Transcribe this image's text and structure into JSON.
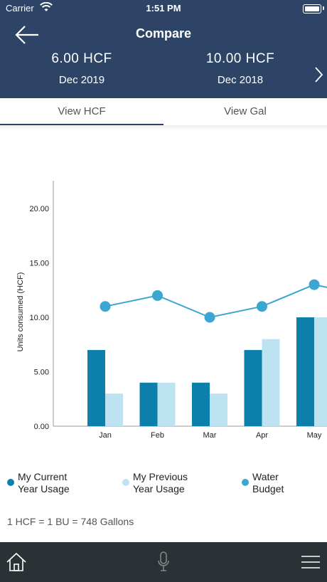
{
  "status_bar": {
    "carrier": "Carrier",
    "time": "1:51 PM"
  },
  "header": {
    "title": "Compare",
    "left": {
      "value": "6.00 HCF",
      "date": "Dec 2019"
    },
    "right": {
      "value": "10.00 HCF",
      "date": "Dec 2018"
    }
  },
  "tabs": [
    {
      "label": "View HCF",
      "active": true
    },
    {
      "label": "View Gal",
      "active": false
    }
  ],
  "chart_data": {
    "type": "bar",
    "ylabel": "Units consumed (HCF)",
    "ylim": [
      0,
      22.5
    ],
    "y_ticks": [
      "0.00",
      "5.00",
      "10.00",
      "15.00",
      "20.00"
    ],
    "y_tick_values": [
      0,
      5,
      10,
      15,
      20
    ],
    "categories": [
      "Jan",
      "Feb",
      "Mar",
      "Apr",
      "May"
    ],
    "series": [
      {
        "name": "My Current Year Usage",
        "kind": "bar",
        "color": "#0d7fab",
        "values": [
          7,
          4,
          4,
          7,
          10
        ]
      },
      {
        "name": "My Previous Year Usage",
        "kind": "bar",
        "color": "#bde3f2",
        "values": [
          3,
          4,
          3,
          8,
          10
        ]
      },
      {
        "name": "Water Budget",
        "kind": "line",
        "color": "#3aa6d1",
        "values": [
          11,
          12,
          10,
          11,
          13
        ]
      }
    ],
    "line_continues_to": 12,
    "legend_position": "bottom"
  },
  "legend": [
    {
      "line1": "My Current",
      "line2": "Year Usage",
      "color": "#0d7fab"
    },
    {
      "line1": "My Previous",
      "line2": "Year Usage",
      "color": "#bde3f2"
    },
    {
      "line1": "Water",
      "line2": "Budget",
      "color": "#3aa6d1"
    }
  ],
  "note": "1 HCF = 1 BU = 748 Gallons",
  "icons": {
    "back": "arrow-left-icon",
    "next": "chevron-right-icon",
    "home": "home-icon",
    "mic": "microphone-icon",
    "menu": "hamburger-menu-icon"
  },
  "colors": {
    "header_bg": "#2d4467",
    "bottom_bar_bg": "#2b3235"
  }
}
